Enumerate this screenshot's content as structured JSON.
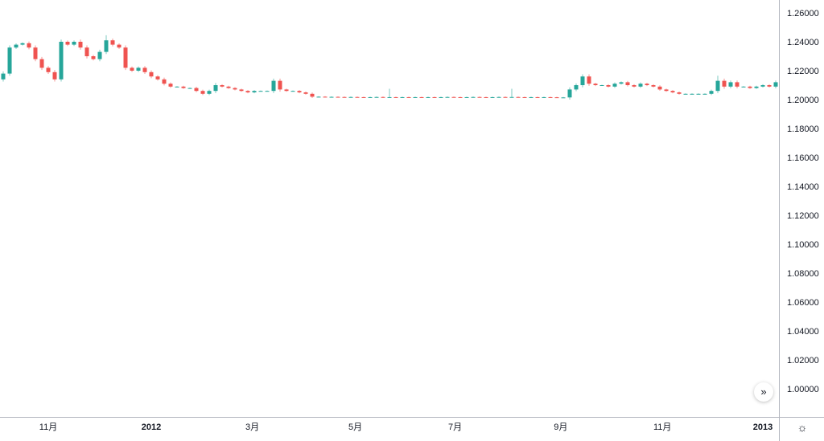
{
  "chart_data": {
    "type": "candlestick",
    "title": "",
    "close": [
      1.218,
      1.236,
      1.238,
      1.239,
      1.236,
      1.228,
      1.222,
      1.219,
      1.214,
      1.24,
      1.238,
      1.24,
      1.236,
      1.23,
      1.228,
      1.233,
      1.241,
      1.238,
      1.236,
      1.222,
      1.22,
      1.222,
      1.219,
      1.216,
      1.214,
      1.211,
      1.209,
      1.209,
      1.208,
      1.208,
      1.206,
      1.204,
      1.206,
      1.21,
      1.209,
      1.208,
      1.207,
      1.206,
      1.205,
      1.206,
      1.206,
      1.206,
      1.213,
      1.207,
      1.206,
      1.206,
      1.205,
      1.204,
      1.202,
      1.202,
      1.2018,
      1.2019,
      1.2018,
      1.2017,
      1.2018,
      1.2017,
      1.2016,
      1.2017,
      1.2018,
      1.2016,
      1.2017,
      1.2016,
      1.2017,
      1.2016,
      1.2017,
      1.2016,
      1.2017,
      1.2016,
      1.2017,
      1.2018,
      1.2017,
      1.2016,
      1.2017,
      1.2018,
      1.2017,
      1.2016,
      1.2017,
      1.2018,
      1.2017,
      1.2018,
      1.2017,
      1.2016,
      1.2017,
      1.2016,
      1.2017,
      1.2016,
      1.2015,
      1.2015,
      1.207,
      1.21,
      1.216,
      1.211,
      1.21,
      1.21,
      1.209,
      1.211,
      1.212,
      1.21,
      1.209,
      1.211,
      1.21,
      1.209,
      1.207,
      1.206,
      1.205,
      1.204,
      1.204,
      1.204,
      1.204,
      1.204,
      1.206,
      1.213,
      1.209,
      1.212,
      1.209,
      1.209,
      1.208,
      1.209,
      1.21,
      1.209,
      1.212
    ],
    "first_open": 1.214,
    "wick_spikes": [
      {
        "index": 60,
        "high": 1.2075
      },
      {
        "index": 79,
        "high": 1.2075
      },
      {
        "index": 16,
        "high": 1.2445
      },
      {
        "index": 111,
        "high": 1.2165
      }
    ],
    "ylim": [
      0.99,
      1.27
    ],
    "y_ticks": [
      "1.26000",
      "1.24000",
      "1.22000",
      "1.20000",
      "1.18000",
      "1.16000",
      "1.14000",
      "1.12000",
      "1.10000",
      "1.08000",
      "1.06000",
      "1.04000",
      "1.02000",
      "1.00000"
    ],
    "x_ticks": [
      {
        "label": "11月",
        "index": 7,
        "year": false
      },
      {
        "label": "2012",
        "index": 23,
        "year": true
      },
      {
        "label": "3月",
        "index": 38.7,
        "year": false
      },
      {
        "label": "5月",
        "index": 54.7,
        "year": false
      },
      {
        "label": "7月",
        "index": 70.2,
        "year": false
      },
      {
        "label": "9月",
        "index": 86.6,
        "year": false
      },
      {
        "label": "11月",
        "index": 102.4,
        "year": false
      },
      {
        "label": "2013",
        "index": 118,
        "year": true
      }
    ],
    "grid": false,
    "colors": {
      "up": "#26a69a",
      "down": "#ef5350",
      "axis": "#b2b5be",
      "text": "#131722"
    }
  },
  "controls": {
    "scroll_icon": "»",
    "settings_icon": "☼"
  }
}
